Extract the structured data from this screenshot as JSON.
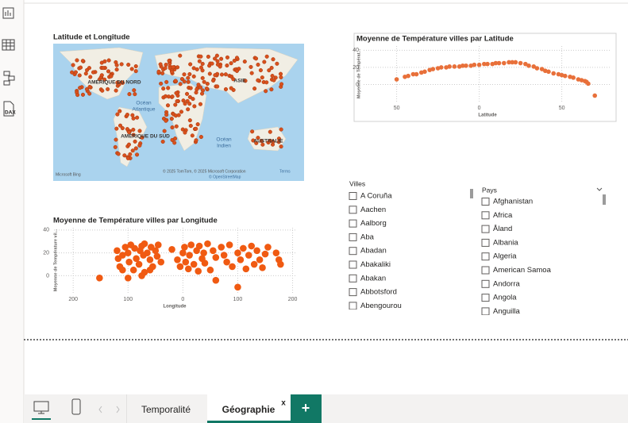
{
  "sidebar": {
    "dax_label": "DAX"
  },
  "map": {
    "title": "Latitude et Longitude",
    "labels": [
      "AMÉRIQUE DU NORD",
      "Océan",
      "Atlantique",
      "ASIE",
      "AMÉRIQUE DU SUD",
      "Océan",
      "Indien",
      "AUSTRALIE"
    ],
    "logo": "Microsoft Bing",
    "attribution": "© 2025 TomTom, © 2025 Microsoft Corporation",
    "terms": "Terms",
    "osm": "© OpenStreetMap"
  },
  "chart_data": [
    {
      "type": "scatter",
      "title": "Moyenne de Température villes par Latitude",
      "x_label": "Latitude",
      "y_label": "Moyenne de Températ...",
      "color": "#e8703a",
      "x": [
        -50,
        -45,
        -43,
        -40,
        -38,
        -35,
        -33,
        -30,
        -28,
        -25,
        -23,
        -20,
        -18,
        -15,
        -12,
        -10,
        -8,
        -5,
        -3,
        0,
        3,
        5,
        8,
        10,
        12,
        15,
        18,
        20,
        22,
        25,
        28,
        30,
        33,
        35,
        38,
        40,
        42,
        45,
        48,
        50,
        52,
        55,
        57,
        60,
        62,
        64,
        65,
        66,
        70
      ],
      "values": [
        6,
        9,
        10,
        12,
        12,
        14,
        15,
        17,
        18,
        19,
        20,
        20,
        21,
        21,
        21,
        22,
        22,
        22,
        23,
        23,
        24,
        24,
        24,
        25,
        25,
        25,
        26,
        26,
        26,
        25,
        24,
        22,
        21,
        19,
        18,
        16,
        15,
        13,
        12,
        11,
        10,
        9,
        8,
        6,
        5,
        4,
        3,
        1,
        -13
      ],
      "xlim": [
        -70,
        80
      ],
      "ylim": [
        -20,
        45
      ],
      "xticks": [
        {
          "value": -50,
          "label": "50"
        },
        0,
        50
      ],
      "yticks": [
        0,
        20,
        40
      ],
      "grid": true
    },
    {
      "type": "scatter",
      "title": "Moyenne de Température villes par Longitude",
      "x_label": "Longitude",
      "y_label": "Moyenne de Température vil...",
      "color": "#f05a12",
      "x": [
        -152,
        -120,
        -118,
        -115,
        -110,
        -105,
        -100,
        -98,
        -95,
        -90,
        -88,
        -85,
        -80,
        -78,
        -75,
        -72,
        -70,
        -65,
        -60,
        -58,
        -55,
        -50,
        -47,
        -45,
        -40,
        -70,
        -75,
        -100,
        -110,
        -20,
        -10,
        -5,
        0,
        3,
        5,
        10,
        12,
        15,
        20,
        25,
        28,
        30,
        35,
        38,
        40,
        45,
        50,
        55,
        60,
        70,
        75,
        80,
        85,
        90,
        100,
        105,
        110,
        115,
        120,
        125,
        130,
        135,
        140,
        145,
        150,
        155,
        170,
        175,
        178,
        100,
        60,
        -60
      ],
      "values": [
        -2,
        22,
        15,
        8,
        18,
        25,
        20,
        12,
        27,
        5,
        24,
        15,
        10,
        22,
        26,
        18,
        3,
        20,
        14,
        25,
        8,
        22,
        17,
        27,
        12,
        28,
        0,
        -2,
        5,
        23,
        14,
        8,
        20,
        25,
        12,
        6,
        18,
        27,
        10,
        22,
        4,
        26,
        15,
        20,
        11,
        28,
        5,
        22,
        16,
        25,
        18,
        12,
        27,
        8,
        20,
        14,
        24,
        6,
        18,
        26,
        10,
        22,
        14,
        7,
        19,
        25,
        20,
        14,
        10,
        -10,
        -4,
        5
      ],
      "xlim": [
        -235,
        205
      ],
      "ylim": [
        -15,
        42
      ],
      "xticks": [
        {
          "value": -200,
          "label": "200"
        },
        {
          "value": -100,
          "label": "100"
        },
        0,
        100,
        200
      ],
      "yticks": [
        0,
        20,
        40
      ],
      "grid": true
    }
  ],
  "slicers": {
    "villes": {
      "title": "Villes",
      "items": [
        "A Coruña",
        "Aachen",
        "Aalborg",
        "Aba",
        "Abadan",
        "Abakaliki",
        "Abakan",
        "Abbotsford",
        "Abengourou"
      ]
    },
    "pays": {
      "title": "Pays",
      "items": [
        "Afghanistan",
        "Africa",
        "Åland",
        "Albania",
        "Algeria",
        "American Samoa",
        "Andorra",
        "Angola",
        "Anguilla"
      ]
    }
  },
  "tabs": {
    "items": [
      "Temporalité",
      "Géographie"
    ],
    "close": "x",
    "add": "+"
  }
}
